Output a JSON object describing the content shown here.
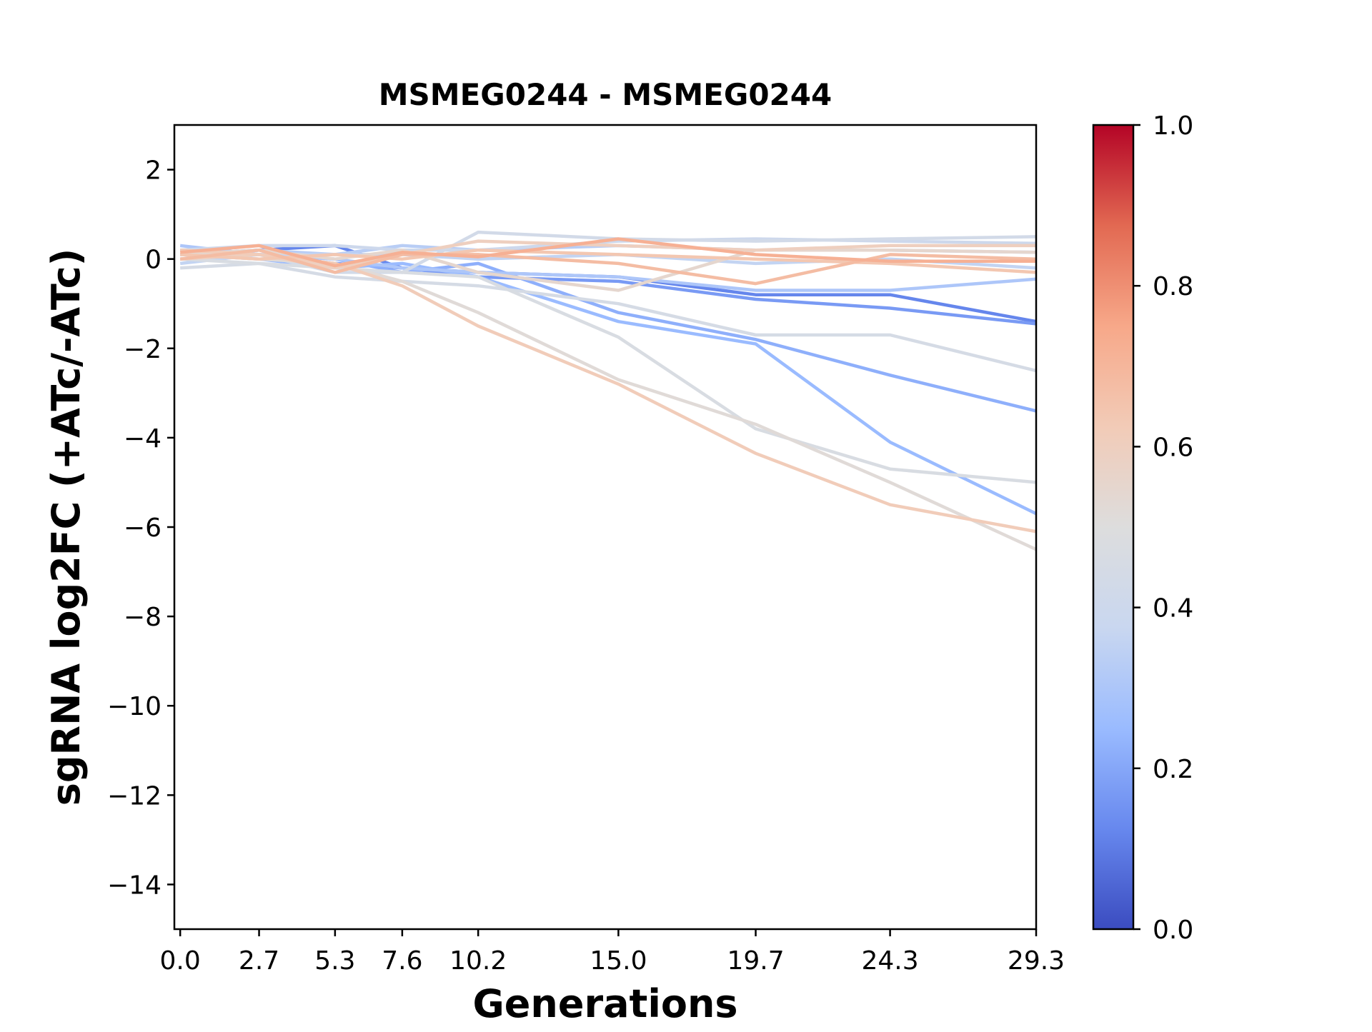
{
  "chart_data": {
    "type": "line",
    "title": "MSMEG0244 - MSMEG0244",
    "xlabel": "Generations",
    "ylabel": "sgRNA log2FC (+ATc/-ATc)",
    "x": [
      0.0,
      2.7,
      5.3,
      7.6,
      10.2,
      15.0,
      19.7,
      24.3,
      29.3
    ],
    "x_tick_labels": [
      "0.0",
      "2.7",
      "5.3",
      "7.6",
      "10.2",
      "15.0",
      "19.7",
      "24.3",
      "29.3"
    ],
    "xlim": [
      -0.2,
      29.3
    ],
    "ylim": [
      -15,
      3
    ],
    "y_ticks": [
      2,
      0,
      -2,
      -4,
      -6,
      -8,
      -10,
      -12,
      -14
    ],
    "y_tick_labels": [
      "2",
      "0",
      "−2",
      "−4",
      "−6",
      "−8",
      "−10",
      "−12",
      "−14"
    ],
    "grid": false,
    "legend": "none",
    "colormap": "coolwarm",
    "colorbar": {
      "range": [
        0.0,
        1.0
      ],
      "ticks": [
        0.0,
        0.2,
        0.4,
        0.6,
        0.8,
        1.0
      ],
      "tick_labels": [
        "0.0",
        "0.2",
        "0.4",
        "0.6",
        "0.8",
        "1.0"
      ],
      "stops": [
        "#3b4cc0",
        "#6788ee",
        "#9abbff",
        "#c9d7f0",
        "#dddddd",
        "#f2cbb7",
        "#f7a889",
        "#e26952",
        "#b40426"
      ]
    },
    "series": [
      {
        "c": 0.12,
        "values": [
          0.1,
          0.2,
          0.3,
          -0.2,
          -0.3,
          -0.4,
          -0.8,
          -0.8,
          -1.4
        ]
      },
      {
        "c": 0.17,
        "values": [
          0.2,
          0.1,
          -0.1,
          -0.2,
          -0.4,
          -0.5,
          -0.9,
          -1.1,
          -1.45
        ]
      },
      {
        "c": 0.22,
        "values": [
          0.0,
          0.1,
          0.0,
          -0.3,
          -0.1,
          -1.2,
          -1.8,
          -2.6,
          -3.4
        ]
      },
      {
        "c": 0.25,
        "values": [
          0.1,
          0.0,
          -0.2,
          -0.1,
          -0.4,
          -1.4,
          -1.9,
          -4.1,
          -5.7
        ]
      },
      {
        "c": 0.3,
        "values": [
          0.3,
          0.1,
          0.0,
          -0.2,
          -0.3,
          -0.4,
          -0.7,
          -0.7,
          -0.45
        ]
      },
      {
        "c": 0.33,
        "values": [
          0.0,
          0.2,
          0.1,
          0.3,
          0.2,
          0.3,
          0.2,
          0.2,
          0.15
        ]
      },
      {
        "c": 0.36,
        "values": [
          -0.1,
          0.1,
          0.1,
          0.1,
          0.0,
          0.1,
          -0.1,
          0.0,
          -0.2
        ]
      },
      {
        "c": 0.4,
        "values": [
          0.2,
          0.3,
          0.3,
          0.2,
          0.2,
          0.4,
          0.45,
          0.4,
          0.35
        ]
      },
      {
        "c": 0.43,
        "values": [
          0.0,
          0.1,
          -0.3,
          -0.3,
          0.6,
          0.45,
          0.4,
          0.45,
          0.5
        ]
      },
      {
        "c": 0.45,
        "values": [
          -0.2,
          -0.1,
          -0.4,
          -0.5,
          -0.6,
          -1.0,
          -1.7,
          -1.7,
          -2.5
        ]
      },
      {
        "c": 0.47,
        "values": [
          0.0,
          -0.1,
          -0.2,
          -0.3,
          -0.4,
          -1.75,
          -3.8,
          -4.7,
          -5.0
        ]
      },
      {
        "c": 0.52,
        "values": [
          0.1,
          0.0,
          -0.1,
          -0.5,
          -1.2,
          -2.7,
          -3.7,
          -5.0,
          -6.5
        ]
      },
      {
        "c": 0.55,
        "values": [
          0.1,
          0.2,
          0.0,
          0.2,
          -0.3,
          -0.7,
          0.2,
          0.2,
          0.15
        ]
      },
      {
        "c": 0.6,
        "values": [
          0.0,
          0.1,
          -0.2,
          0.1,
          0.4,
          0.3,
          0.2,
          0.3,
          0.3
        ]
      },
      {
        "c": 0.62,
        "values": [
          0.2,
          0.1,
          -0.1,
          -0.6,
          -1.5,
          -2.8,
          -4.35,
          -5.5,
          -6.1
        ]
      },
      {
        "c": 0.64,
        "values": [
          0.1,
          0.0,
          0.1,
          0.0,
          0.2,
          0.1,
          0.0,
          -0.1,
          -0.3
        ]
      },
      {
        "c": 0.68,
        "values": [
          0.0,
          0.2,
          -0.3,
          0.1,
          0.1,
          -0.1,
          -0.55,
          0.1,
          0.0
        ]
      },
      {
        "c": 0.72,
        "values": [
          0.15,
          0.3,
          -0.15,
          0.15,
          0.05,
          0.45,
          0.1,
          -0.05,
          -0.05
        ]
      }
    ]
  }
}
